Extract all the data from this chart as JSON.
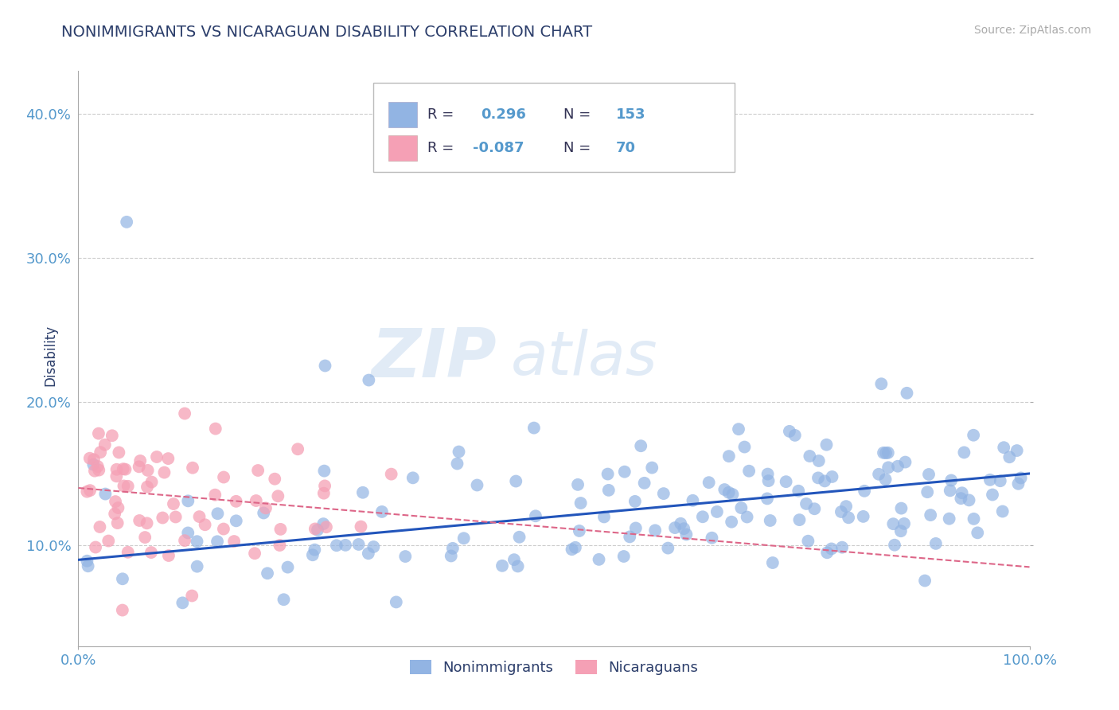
{
  "title": "NONIMMIGRANTS VS NICARAGUAN DISABILITY CORRELATION CHART",
  "source": "Source: ZipAtlas.com",
  "ylabel": "Disability",
  "xlim": [
    0,
    1
  ],
  "ylim": [
    0.03,
    0.43
  ],
  "yticks": [
    0.1,
    0.2,
    0.3,
    0.4
  ],
  "ytick_labels": [
    "10.0%",
    "20.0%",
    "30.0%",
    "40.0%"
  ],
  "xtick_labels": [
    "0.0%",
    "100.0%"
  ],
  "blue_color": "#92b4e3",
  "pink_color": "#f5a0b5",
  "trend_blue": "#2255bb",
  "trend_pink": "#dd6688",
  "watermark_zip": "ZIP",
  "watermark_atlas": "atlas",
  "background": "#ffffff",
  "grid_color": "#cccccc",
  "title_color": "#2c3e6b",
  "axis_label_color": "#2c3e6b",
  "tick_color": "#5599cc",
  "R_blue": 0.296,
  "N_blue": 153,
  "R_pink": -0.087,
  "N_pink": 70,
  "blue_intercept": 0.09,
  "blue_slope": 0.06,
  "pink_intercept": 0.14,
  "pink_slope": -0.055
}
